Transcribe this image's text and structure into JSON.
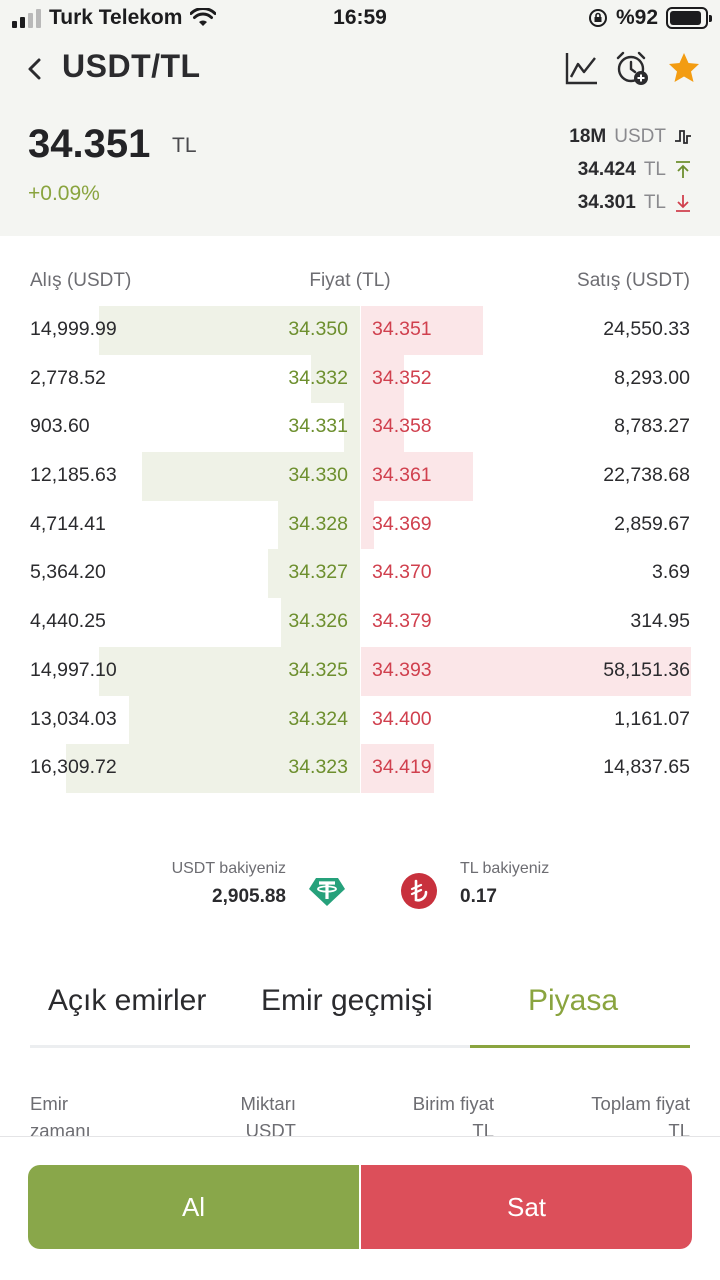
{
  "status_bar": {
    "carrier": "Turk Telekom",
    "time": "16:59",
    "battery": "%92"
  },
  "header": {
    "title": "USDT/TL",
    "icons": [
      "back-arrow-icon",
      "chart-icon",
      "add-alarm-icon",
      "star-icon"
    ],
    "favorite_color": "#f39c12"
  },
  "price": {
    "last": "34.351",
    "unit": "TL",
    "change": "+0.09%",
    "change_color": "#8aa43f"
  },
  "stats": {
    "volume": "18M",
    "volume_unit": "USDT",
    "high": "34.424",
    "high_unit": "TL",
    "low": "34.301",
    "low_unit": "TL"
  },
  "orderbook": {
    "headers": {
      "bid": "Alış (USDT)",
      "price": "Fiyat (TL)",
      "ask": "Satış (USDT)"
    },
    "rows": [
      {
        "bid_qty": "14,999.99",
        "bid_price": "34.350",
        "ask_price": "34.351",
        "ask_qty": "24,550.33",
        "bid_depth": 0.79,
        "ask_depth": 0.37
      },
      {
        "bid_qty": "2,778.52",
        "bid_price": "34.332",
        "ask_price": "34.352",
        "ask_qty": "8,293.00",
        "bid_depth": 0.15,
        "ask_depth": 0.13
      },
      {
        "bid_qty": "903.60",
        "bid_price": "34.331",
        "ask_price": "34.358",
        "ask_qty": "8,783.27",
        "bid_depth": 0.05,
        "ask_depth": 0.13
      },
      {
        "bid_qty": "12,185.63",
        "bid_price": "34.330",
        "ask_price": "34.361",
        "ask_qty": "22,738.68",
        "bid_depth": 0.66,
        "ask_depth": 0.34
      },
      {
        "bid_qty": "4,714.41",
        "bid_price": "34.328",
        "ask_price": "34.369",
        "ask_qty": "2,859.67",
        "bid_depth": 0.25,
        "ask_depth": 0.04
      },
      {
        "bid_qty": "5,364.20",
        "bid_price": "34.327",
        "ask_price": "34.370",
        "ask_qty": "3.69",
        "bid_depth": 0.28,
        "ask_depth": 0.0
      },
      {
        "bid_qty": "4,440.25",
        "bid_price": "34.326",
        "ask_price": "34.379",
        "ask_qty": "314.95",
        "bid_depth": 0.24,
        "ask_depth": 0.0
      },
      {
        "bid_qty": "14,997.10",
        "bid_price": "34.325",
        "ask_price": "34.393",
        "ask_qty": "58,151.36",
        "bid_depth": 0.79,
        "ask_depth": 1.0
      },
      {
        "bid_qty": "13,034.03",
        "bid_price": "34.324",
        "ask_price": "34.400",
        "ask_qty": "1,161.07",
        "bid_depth": 0.7,
        "ask_depth": 0.0
      },
      {
        "bid_qty": "16,309.72",
        "bid_price": "34.323",
        "ask_price": "34.419",
        "ask_qty": "14,837.65",
        "bid_depth": 0.89,
        "ask_depth": 0.22
      }
    ]
  },
  "balances": {
    "usdt_label": "USDT bakiyeniz",
    "usdt_value": "2,905.88",
    "usdt_icon": "tether-icon",
    "tl_label": "TL bakiyeniz",
    "tl_value": "0.17",
    "tl_icon": "lira-icon"
  },
  "tabs": [
    {
      "label": "Açık emirler",
      "active": false
    },
    {
      "label": "Emir geçmişi",
      "active": false
    },
    {
      "label": "Piyasa",
      "active": true
    }
  ],
  "columns": [
    {
      "line1": "Emir",
      "line2": "zamanı"
    },
    {
      "line1": "Miktarı",
      "line2": "USDT"
    },
    {
      "line1": "Birim fiyat",
      "line2": "TL"
    },
    {
      "line1": "Toplam fiyat",
      "line2": "TL"
    }
  ],
  "actions": {
    "buy": "Al",
    "sell": "Sat",
    "buy_color": "#89a74a",
    "sell_color": "#dc4f5a"
  }
}
